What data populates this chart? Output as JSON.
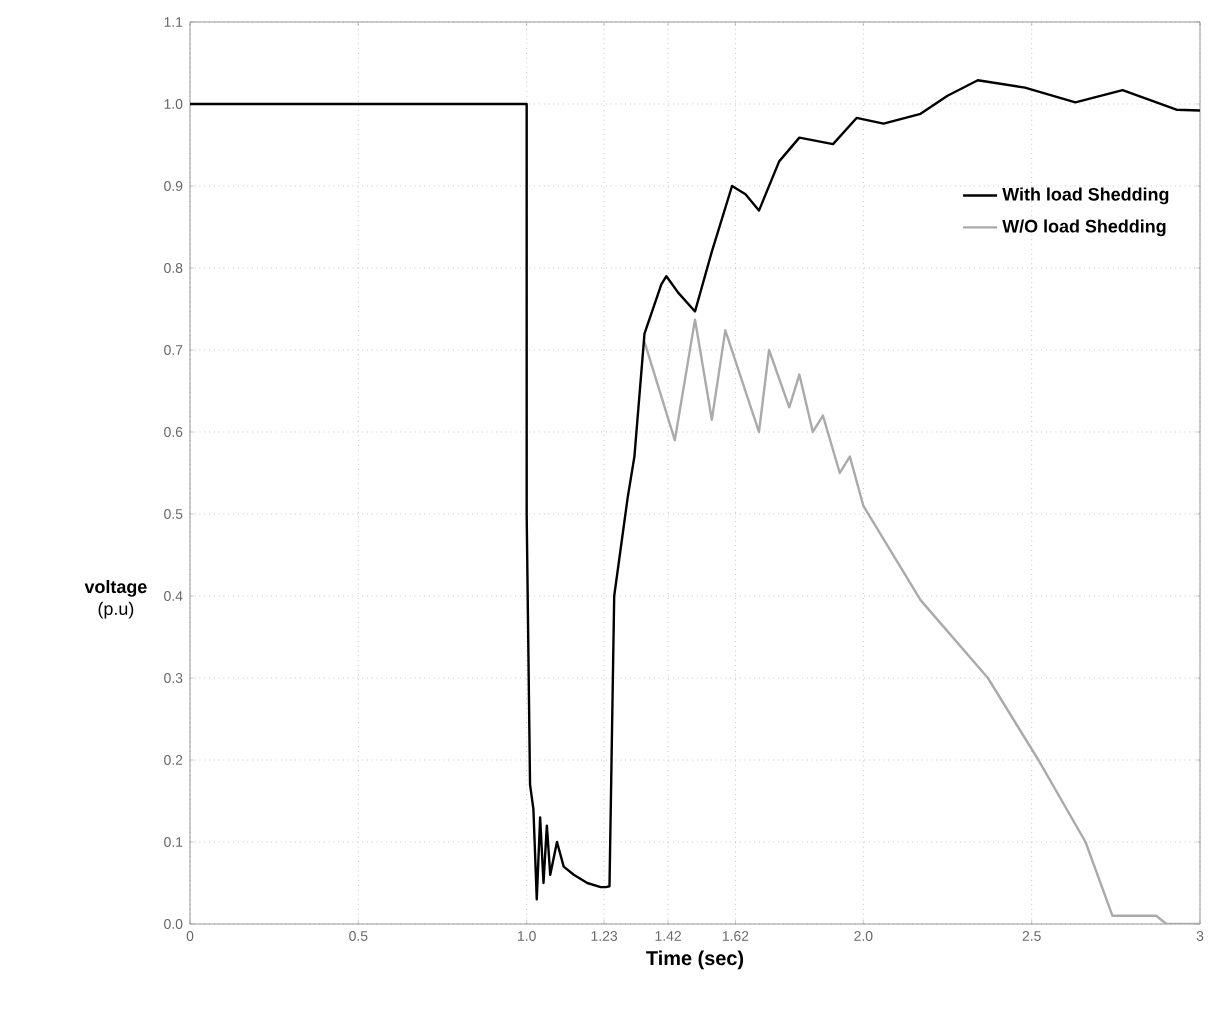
{
  "chart_data": {
    "type": "line",
    "xlabel": "**Time (sec)**",
    "ylabel": "**voltage** (p.u)",
    "xlim": [
      0,
      3
    ],
    "ylim": [
      0,
      1.1
    ],
    "xticks": [
      0,
      0.5,
      {
        "value": 1.0,
        "label": "1.0"
      },
      1.23,
      1.42,
      1.62,
      {
        "value": 2.0,
        "label": "2.0"
      },
      2.5,
      3
    ],
    "yticks": [
      {
        "value": 0,
        "label": "0.0"
      },
      0.1,
      0.2,
      0.3,
      0.4,
      0.5,
      0.6,
      0.7,
      0.8,
      0.9,
      {
        "value": 1.0,
        "label": "1.0"
      },
      1.1
    ],
    "grid": true,
    "legend": "right",
    "line_style": "solid",
    "marker": "none",
    "series": [
      {
        "name": "With load Shedding",
        "color": "#000000",
        "x": [
          0,
          1.0,
          1.0,
          1.01,
          1.02,
          1.03,
          1.04,
          1.05,
          1.06,
          1.07,
          1.09,
          1.11,
          1.14,
          1.18,
          1.22,
          1.235,
          1.246,
          1.26,
          1.3,
          1.32,
          1.35,
          1.4,
          1.415,
          1.45,
          1.5,
          1.55,
          1.61,
          1.65,
          1.69,
          1.75,
          1.81,
          1.86,
          1.91,
          1.98,
          2.06,
          2.17,
          2.25,
          2.34,
          2.48,
          2.63,
          2.77,
          2.93,
          3.0
        ],
        "values": [
          1.0,
          1.0,
          0.5,
          0.17,
          0.14,
          0.03,
          0.13,
          0.05,
          0.12,
          0.06,
          0.1,
          0.07,
          0.06,
          0.05,
          0.045,
          0.045,
          0.046,
          0.4,
          0.52,
          0.57,
          0.72,
          0.78,
          0.79,
          0.77,
          0.747,
          0.82,
          0.9,
          0.89,
          0.87,
          0.93,
          0.959,
          0.955,
          0.951,
          0.983,
          0.976,
          0.988,
          1.01,
          1.029,
          1.02,
          1.002,
          1.017,
          0.993,
          0.992
        ]
      },
      {
        "name": "W/O load Shedding",
        "color": "#aaaaaa",
        "x": [
          1.35,
          1.44,
          1.5,
          1.55,
          1.59,
          1.69,
          1.72,
          1.78,
          1.81,
          1.85,
          1.88,
          1.93,
          1.96,
          2.0,
          2.17,
          2.37,
          2.52,
          2.66,
          2.74,
          2.87,
          2.9,
          3.0
        ],
        "values": [
          0.71,
          0.59,
          0.737,
          0.615,
          0.724,
          0.6,
          0.7,
          0.63,
          0.67,
          0.6,
          0.62,
          0.55,
          0.57,
          0.51,
          0.395,
          0.3,
          0.2,
          0.1,
          0.01,
          0.01,
          0.0,
          0.0
        ]
      }
    ]
  }
}
